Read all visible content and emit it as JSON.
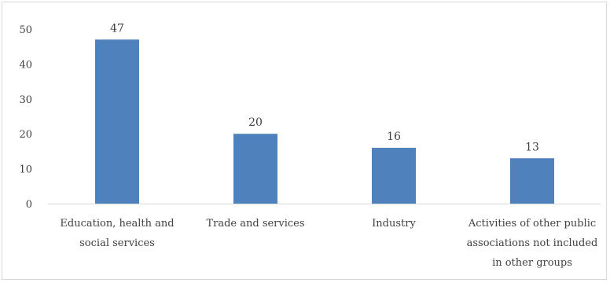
{
  "chart_data": {
    "type": "bar",
    "categories": [
      [
        "Education, health and",
        "social services"
      ],
      [
        "Trade and services"
      ],
      [
        "Industry"
      ],
      [
        "Activities of other public",
        "associations not included",
        "in other groups"
      ]
    ],
    "values": [
      47,
      20,
      16,
      13
    ],
    "data_labels": [
      "47",
      "20",
      "16",
      "13"
    ],
    "title": "",
    "xlabel": "",
    "ylabel": "",
    "ylim": [
      0,
      50
    ],
    "yticks": [
      "0",
      "10",
      "20",
      "30",
      "40",
      "50"
    ],
    "grid": false,
    "legend": "none",
    "bar_color": "#4f81bd",
    "axis_color": "#d9d9d9",
    "text_color": "#404040"
  }
}
